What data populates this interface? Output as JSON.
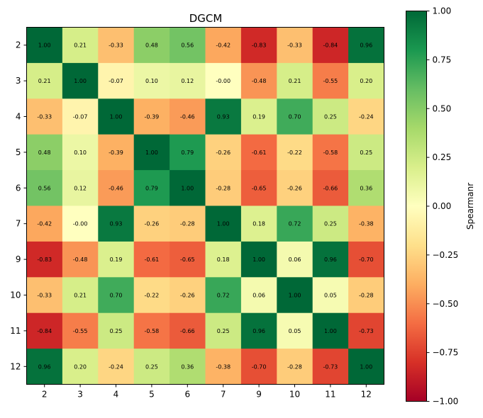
{
  "chart_data": {
    "type": "heatmap",
    "title": "DGCM",
    "x_categories": [
      "2",
      "3",
      "4",
      "5",
      "6",
      "7",
      "9",
      "10",
      "11",
      "12"
    ],
    "y_categories": [
      "2",
      "3",
      "4",
      "5",
      "6",
      "7",
      "9",
      "10",
      "11",
      "12"
    ],
    "values": [
      [
        1.0,
        0.21,
        -0.33,
        0.48,
        0.56,
        -0.42,
        -0.83,
        -0.33,
        -0.84,
        0.96
      ],
      [
        0.21,
        1.0,
        -0.07,
        0.1,
        0.12,
        -0.0,
        -0.48,
        0.21,
        -0.55,
        0.2
      ],
      [
        -0.33,
        -0.07,
        1.0,
        -0.39,
        -0.46,
        0.93,
        0.19,
        0.7,
        0.25,
        -0.24
      ],
      [
        0.48,
        0.1,
        -0.39,
        1.0,
        0.79,
        -0.26,
        -0.61,
        -0.22,
        -0.58,
        0.25
      ],
      [
        0.56,
        0.12,
        -0.46,
        0.79,
        1.0,
        -0.28,
        -0.65,
        -0.26,
        -0.66,
        0.36
      ],
      [
        -0.42,
        -0.0,
        0.93,
        -0.26,
        -0.28,
        1.0,
        0.18,
        0.72,
        0.25,
        -0.38
      ],
      [
        -0.83,
        -0.48,
        0.19,
        -0.61,
        -0.65,
        0.18,
        1.0,
        0.06,
        0.96,
        -0.7
      ],
      [
        -0.33,
        0.21,
        0.7,
        -0.22,
        -0.26,
        0.72,
        0.06,
        1.0,
        0.05,
        -0.28
      ],
      [
        -0.84,
        -0.55,
        0.25,
        -0.58,
        -0.66,
        0.25,
        0.96,
        0.05,
        1.0,
        -0.73
      ],
      [
        0.96,
        0.2,
        -0.24,
        0.25,
        0.36,
        -0.38,
        -0.7,
        -0.28,
        -0.73,
        1.0
      ]
    ],
    "value_labels": [
      [
        "1.00",
        "0.21",
        "-0.33",
        "0.48",
        "0.56",
        "-0.42",
        "-0.83",
        "-0.33",
        "-0.84",
        "0.96"
      ],
      [
        "0.21",
        "1.00",
        "-0.07",
        "0.10",
        "0.12",
        "-0.00",
        "-0.48",
        "0.21",
        "-0.55",
        "0.20"
      ],
      [
        "-0.33",
        "-0.07",
        "1.00",
        "-0.39",
        "-0.46",
        "0.93",
        "0.19",
        "0.70",
        "0.25",
        "-0.24"
      ],
      [
        "0.48",
        "0.10",
        "-0.39",
        "1.00",
        "0.79",
        "-0.26",
        "-0.61",
        "-0.22",
        "-0.58",
        "0.25"
      ],
      [
        "0.56",
        "0.12",
        "-0.46",
        "0.79",
        "1.00",
        "-0.28",
        "-0.65",
        "-0.26",
        "-0.66",
        "0.36"
      ],
      [
        "-0.42",
        "-0.00",
        "0.93",
        "-0.26",
        "-0.28",
        "1.00",
        "0.18",
        "0.72",
        "0.25",
        "-0.38"
      ],
      [
        "-0.83",
        "-0.48",
        "0.19",
        "-0.61",
        "-0.65",
        "0.18",
        "1.00",
        "0.06",
        "0.96",
        "-0.70"
      ],
      [
        "-0.33",
        "0.21",
        "0.70",
        "-0.22",
        "-0.26",
        "0.72",
        "0.06",
        "1.00",
        "0.05",
        "-0.28"
      ],
      [
        "-0.84",
        "-0.55",
        "0.25",
        "-0.58",
        "-0.66",
        "0.25",
        "0.96",
        "0.05",
        "1.00",
        "-0.73"
      ],
      [
        "0.96",
        "0.20",
        "-0.24",
        "0.25",
        "0.36",
        "-0.38",
        "-0.70",
        "-0.28",
        "-0.73",
        "1.00"
      ]
    ],
    "colormap": "RdYlGn",
    "vmin": -1.0,
    "vmax": 1.0,
    "colorbar": {
      "label": "Spearmanr",
      "ticks": [
        1.0,
        0.75,
        0.5,
        0.25,
        0.0,
        -0.25,
        -0.5,
        -0.75,
        -1.0
      ],
      "tick_labels": [
        "1.00",
        "0.75",
        "0.50",
        "0.25",
        "0.00",
        "−0.25",
        "−0.50",
        "−0.75",
        "−1.00"
      ]
    },
    "grid": false
  }
}
